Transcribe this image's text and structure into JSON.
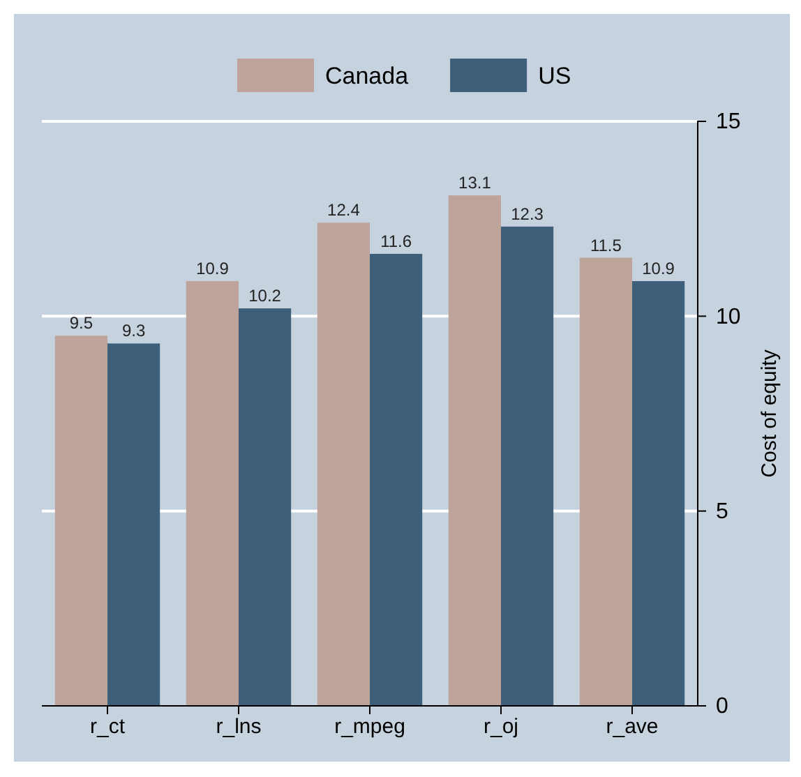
{
  "chart_data": {
    "type": "bar",
    "categories": [
      "r_ct",
      "r_lns",
      "r_mpeg",
      "r_oj",
      "r_ave"
    ],
    "series": [
      {
        "name": "Canada",
        "color": "#bea39a",
        "values": [
          9.5,
          10.9,
          12.4,
          13.1,
          11.5
        ]
      },
      {
        "name": "US",
        "color": "#3d5f7a",
        "values": [
          9.3,
          10.2,
          11.6,
          12.3,
          10.9
        ]
      }
    ],
    "ylabel": "Cost of equity",
    "ylim": [
      0,
      15
    ],
    "yticks": [
      0,
      5,
      10,
      15
    ],
    "grid": "y",
    "legend": "top",
    "data_labels": true
  }
}
